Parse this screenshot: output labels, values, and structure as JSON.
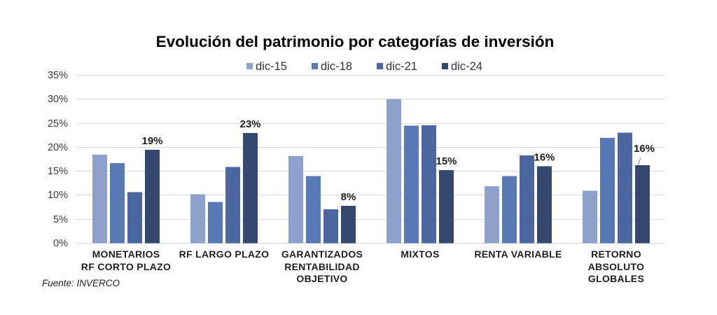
{
  "chart_data": {
    "type": "bar",
    "title": "Evolución del patrimonio por categorías de inversión",
    "categories": [
      "MONETARIOS\nRF CORTO PLAZO",
      "RF LARGO PLAZO",
      "GARANTIZADOS\nRENTABILIDAD\nOBJETIVO",
      "MIXTOS",
      "RENTA VARIABLE",
      "RETORNO\nABSOLUTO\nGLOBALES"
    ],
    "series": [
      {
        "name": "dic-15",
        "color": "#8ea1cd",
        "values": [
          18.4,
          10.1,
          18.1,
          30.0,
          11.8,
          10.9
        ]
      },
      {
        "name": "dic-18",
        "color": "#5878b6",
        "values": [
          16.6,
          8.5,
          13.9,
          24.4,
          13.9,
          21.9
        ]
      },
      {
        "name": "dic-21",
        "color": "#4a67a1",
        "values": [
          10.6,
          15.8,
          7.0,
          24.5,
          18.2,
          23.0
        ]
      },
      {
        "name": "dic-24",
        "color": "#344870",
        "values": [
          19.4,
          22.9,
          7.7,
          15.2,
          16.0,
          16.2
        ],
        "data_labels": [
          "19%",
          "23%",
          "8%",
          "15%",
          "16%",
          "16%"
        ]
      }
    ],
    "ylim": [
      0,
      35
    ],
    "y_ticks": [
      0,
      5,
      10,
      15,
      20,
      25,
      30,
      35
    ],
    "y_tick_labels": [
      "0%",
      "5%",
      "10%",
      "15%",
      "20%",
      "25%",
      "30%",
      "35%"
    ],
    "grid": true,
    "legend": "top",
    "source": "Fuente: INVERCO"
  }
}
